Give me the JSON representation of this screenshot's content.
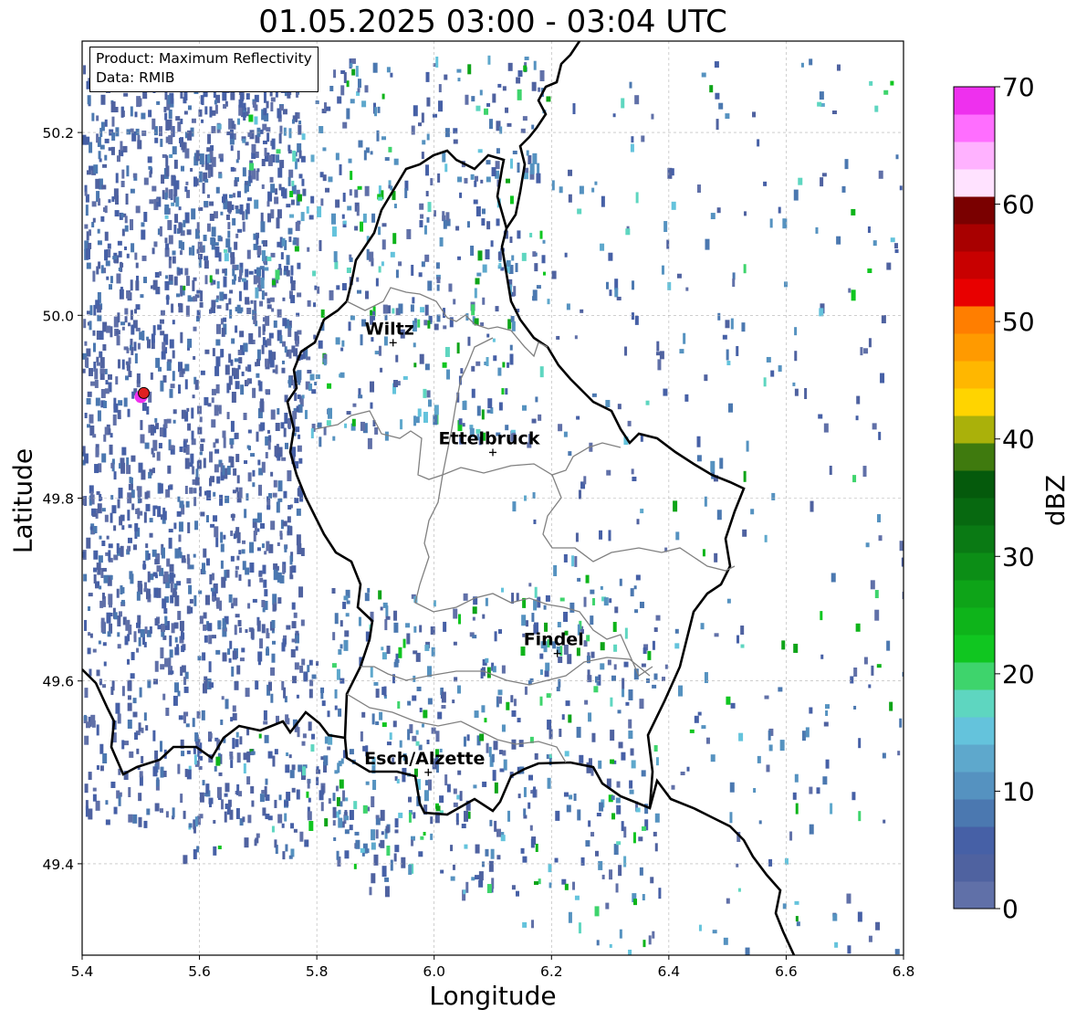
{
  "title": "01.05.2025 03:00 - 03:04 UTC",
  "info_box": {
    "product_line": "Product: Maximum Reflectivity",
    "data_line": "Data: RMIB"
  },
  "axes": {
    "xlabel": "Longitude",
    "ylabel": "Latitude",
    "xlim": [
      5.4,
      6.8
    ],
    "ylim": [
      49.3,
      50.3
    ],
    "xticks": [
      "5.4",
      "5.6",
      "5.8",
      "6.0",
      "6.2",
      "6.4",
      "6.6",
      "6.8"
    ],
    "yticks": [
      "49.4",
      "49.6",
      "49.8",
      "50.0",
      "50.2"
    ],
    "grid": true
  },
  "cities": [
    {
      "name": "Wiltz",
      "lon": 5.93,
      "lat": 49.97
    },
    {
      "name": "Ettelbruck",
      "lon": 6.1,
      "lat": 49.85
    },
    {
      "name": "Findel",
      "lon": 6.21,
      "lat": 49.63
    },
    {
      "name": "Esch/Alzette",
      "lon": 5.99,
      "lat": 49.5
    }
  ],
  "radar_marker": {
    "lon": 5.505,
    "lat": 49.915,
    "color": "#e02020"
  },
  "colorbar": {
    "label": "dBZ",
    "ticks": [
      "0",
      "10",
      "20",
      "30",
      "40",
      "50",
      "60",
      "70"
    ],
    "min": 0,
    "max": 70,
    "colors": [
      "#6070a8",
      "#4f62a0",
      "#4660a6",
      "#4b78b0",
      "#5592c0",
      "#5ea8cc",
      "#64c3dc",
      "#5ed6c0",
      "#3ed46c",
      "#10c620",
      "#0eb41a",
      "#0ea418",
      "#0c8e16",
      "#0a7a14",
      "#076910",
      "#055a0c",
      "#3f7a0e",
      "#aab10a",
      "#ffd400",
      "#ffb700",
      "#ff9a00",
      "#ff7e00",
      "#e80000",
      "#c80000",
      "#a80000",
      "#7a0000",
      "#ffe2ff",
      "#ffb2ff",
      "#ff6eff",
      "#ee30ee"
    ]
  },
  "legend_colors": {
    "border": "#000000",
    "province_border": "#808080",
    "grid": "#b0b0b0"
  }
}
